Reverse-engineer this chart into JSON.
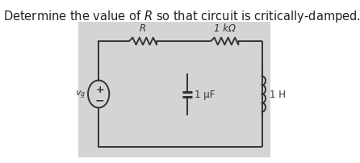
{
  "title": "Determine the value of $R$ so that circuit is critically-damped.",
  "title_fontsize": 10.5,
  "title_color": "#222222",
  "bg_color": "#d4d4d4",
  "fig_bg": "#ffffff",
  "wire_color": "#333333",
  "component_color": "#333333",
  "label_R": "R",
  "label_1k": "1 kΩ",
  "label_1uF": "1 μF",
  "label_1H": "1 H",
  "label_vg": "$v_g$"
}
